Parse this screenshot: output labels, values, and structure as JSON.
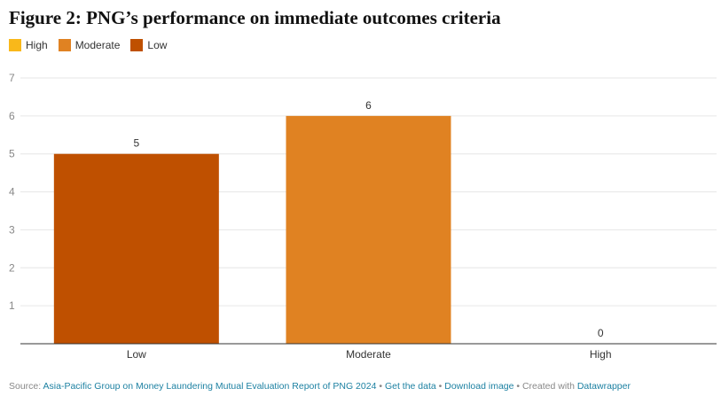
{
  "colors": {
    "High": "#f9b81a",
    "Moderate": "#e08222",
    "Low": "#bf5000"
  },
  "footer": {
    "source_prefix": "Source: ",
    "source_link": "Asia-Pacific Group on Money Laundering Mutual Evaluation Report of PNG 2024",
    "sep1": " • ",
    "get_data": "Get the data",
    "sep2": " • ",
    "download": "Download image",
    "created": " • Created with ",
    "datawrapper": "Datawrapper"
  },
  "chart_data": {
    "type": "bar",
    "title": "Figure 2: PNG’s performance on immediate outcomes criteria",
    "legend": [
      "High",
      "Moderate",
      "Low"
    ],
    "legend_position": "top-left",
    "categories": [
      "Low",
      "Moderate",
      "High"
    ],
    "values": [
      5,
      6,
      0
    ],
    "ylim": [
      0,
      7
    ],
    "yticks": [
      1,
      2,
      3,
      4,
      5,
      6,
      7
    ],
    "grid": true,
    "xlabel": "",
    "ylabel": ""
  }
}
